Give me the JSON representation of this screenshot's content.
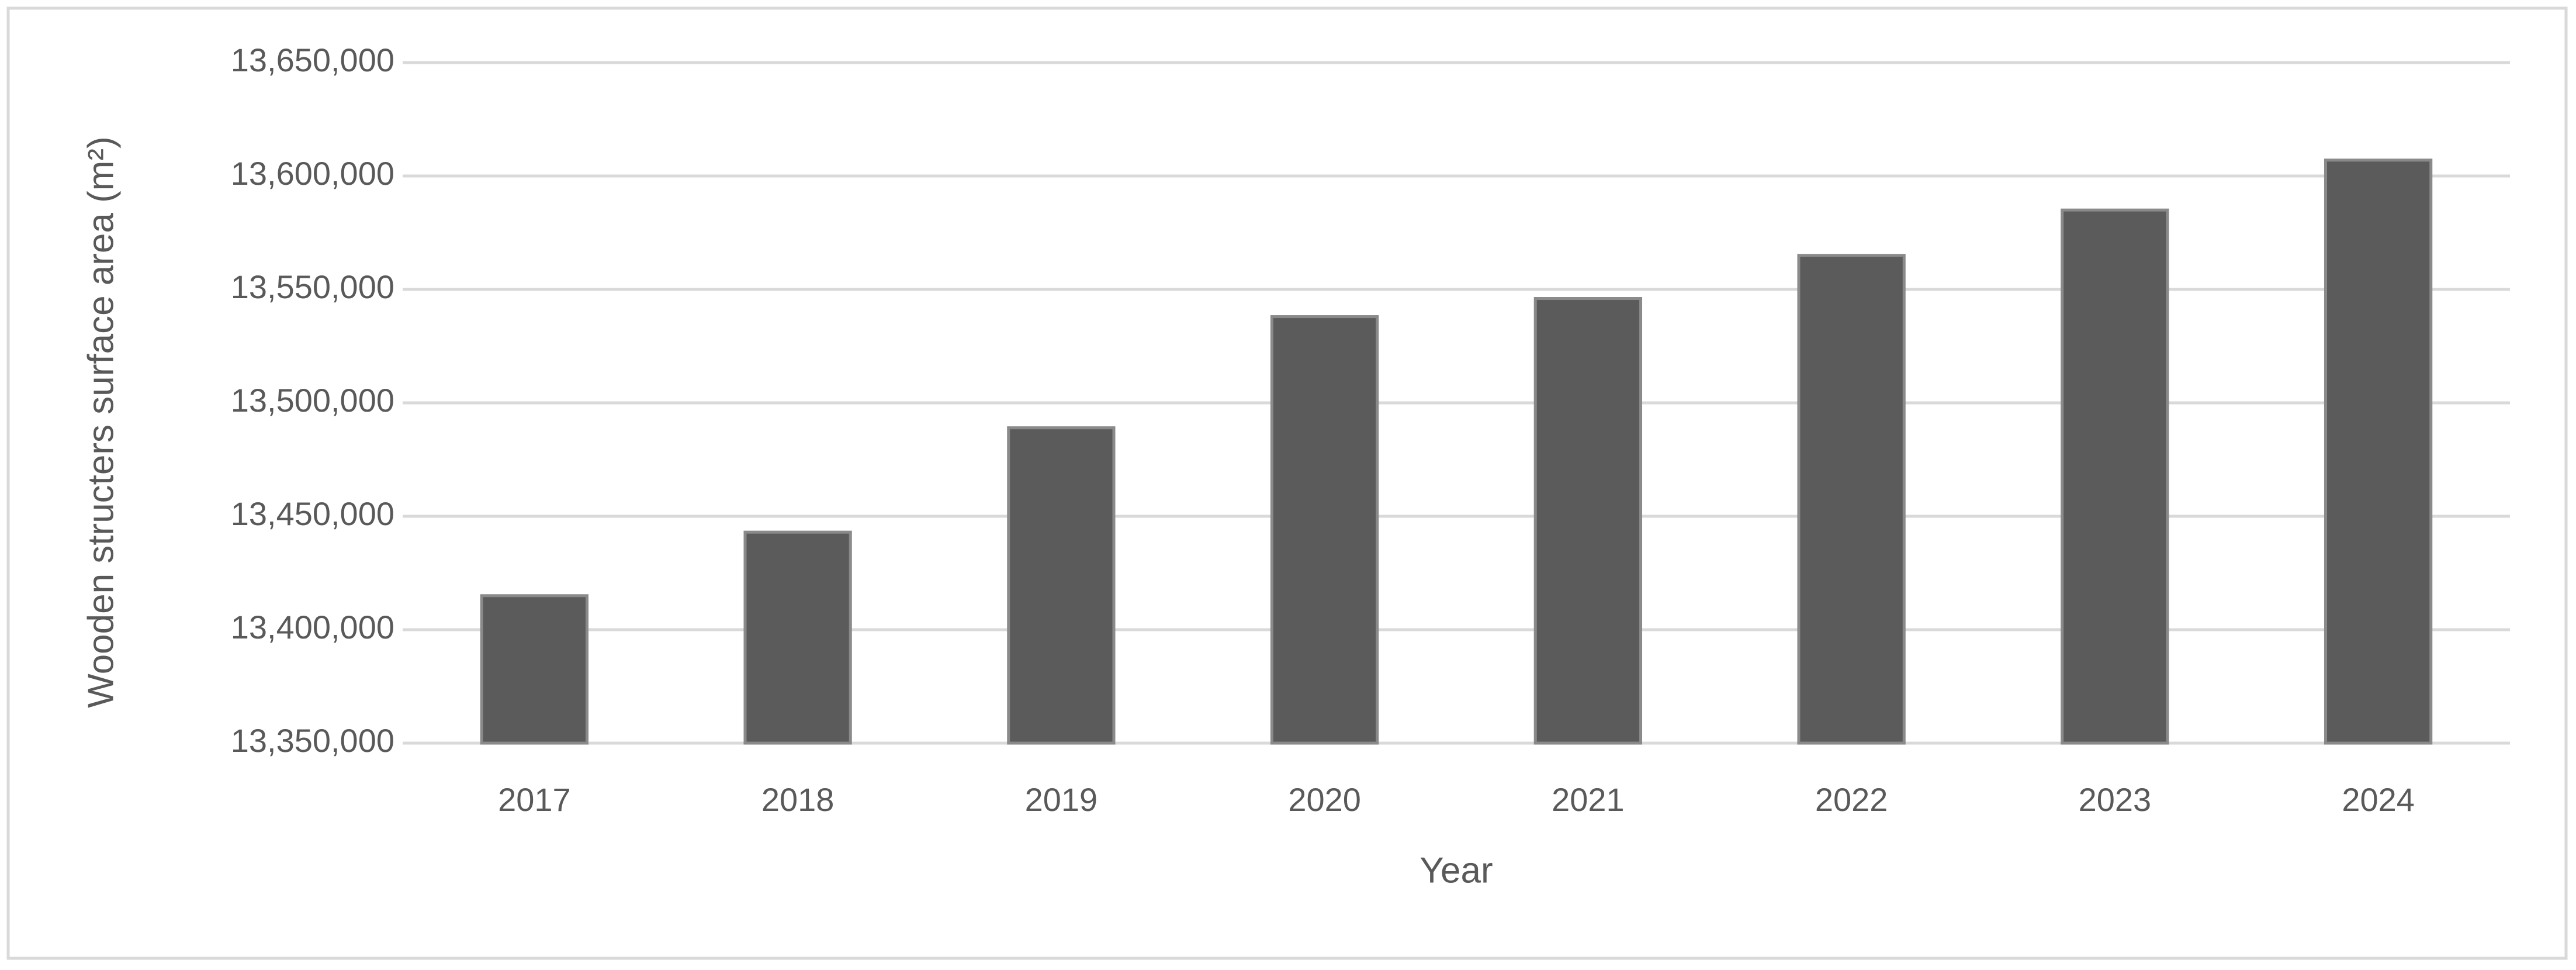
{
  "chart_data": {
    "type": "bar",
    "x_label": "Year",
    "y_label": "Wooden structers surface area (m²)",
    "categories": [
      "2017",
      "2018",
      "2019",
      "2020",
      "2021",
      "2022",
      "2023",
      "2024"
    ],
    "values": [
      13415000,
      13443000,
      13489000,
      13538000,
      13546000,
      13565000,
      13585000,
      13607000
    ],
    "color": "#5b5b5b",
    "ylim": [
      13350000,
      13650000
    ],
    "yticks": [
      {
        "value": 13350000,
        "label": "13,350,000"
      },
      {
        "value": 13400000,
        "label": "13,400,000"
      },
      {
        "value": 13450000,
        "label": "13,450,000"
      },
      {
        "value": 13500000,
        "label": "13,500,000"
      },
      {
        "value": 13550000,
        "label": "13,550,000"
      },
      {
        "value": 13600000,
        "label": "13,600,000"
      },
      {
        "value": 13650000,
        "label": "13,650,000"
      }
    ],
    "grid": true
  }
}
